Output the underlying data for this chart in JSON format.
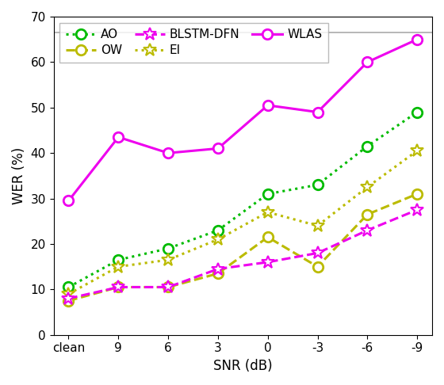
{
  "x_labels": [
    "clean",
    "9",
    "6",
    "3",
    "0",
    "-3",
    "-6",
    "-9"
  ],
  "x_positions": [
    0,
    1,
    2,
    3,
    4,
    5,
    6,
    7
  ],
  "series_order": [
    "AO",
    "EI",
    "OW",
    "WLAS",
    "BLSTM-DFN"
  ],
  "series": {
    "AO": {
      "values": [
        10.5,
        16.5,
        19,
        23,
        31,
        33,
        41.5,
        49
      ],
      "color": "#00bb00",
      "linestyle": "dotted",
      "marker": "o",
      "markersize": 9,
      "linewidth": 2.2,
      "markerfacecolor": "white",
      "markeredgewidth": 2.0
    },
    "EI": {
      "values": [
        9,
        15,
        16.5,
        21,
        27,
        24,
        32.5,
        40.5
      ],
      "color": "#bbbb00",
      "linestyle": "dotted",
      "marker": "*",
      "markersize": 12,
      "linewidth": 2.2,
      "markerfacecolor": "white",
      "markeredgewidth": 1.5
    },
    "OW": {
      "values": [
        7.5,
        10.5,
        10.5,
        13.5,
        21.5,
        15,
        26.5,
        31
      ],
      "color": "#bbbb00",
      "linestyle": "dashed",
      "marker": "o",
      "markersize": 9,
      "linewidth": 2.2,
      "markerfacecolor": "white",
      "markeredgewidth": 2.0
    },
    "WLAS": {
      "values": [
        29.5,
        43.5,
        40,
        41,
        50.5,
        49,
        60,
        65
      ],
      "color": "#ee00ee",
      "linestyle": "solid",
      "marker": "o",
      "markersize": 9,
      "linewidth": 2.2,
      "markerfacecolor": "white",
      "markeredgewidth": 2.0
    },
    "BLSTM-DFN": {
      "values": [
        8,
        10.5,
        10.5,
        14.5,
        16,
        18,
        23,
        27.5
      ],
      "color": "#ee00ee",
      "linestyle": "dashed",
      "marker": "*",
      "markersize": 12,
      "linewidth": 2.2,
      "markerfacecolor": "white",
      "markeredgewidth": 1.5
    }
  },
  "xlabel": "SNR (dB)",
  "ylabel": "WER (%)",
  "ylim": [
    0,
    70
  ],
  "yticks": [
    0,
    10,
    20,
    30,
    40,
    50,
    60,
    70
  ],
  "hline_y": 66.5,
  "hline_color": "#aaaaaa",
  "background_color": "#ffffff",
  "legend_order": [
    "AO",
    "OW",
    "BLSTM-DFN",
    "EI",
    "WLAS"
  ],
  "figsize": [
    5.6,
    4.86
  ],
  "dpi": 100
}
